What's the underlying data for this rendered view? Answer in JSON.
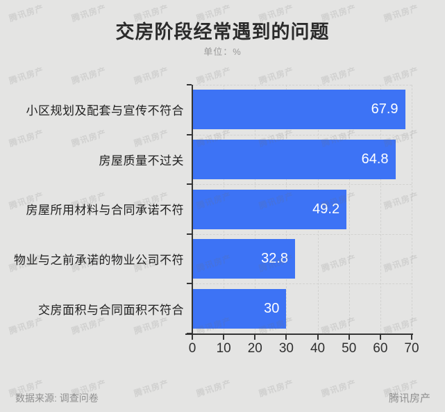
{
  "title": "交房阶段经常遇到的问题",
  "subtitle": "单位：%",
  "watermark_text": "腾讯房产",
  "footer": {
    "source": "数据来源: 调查问卷",
    "brand": "腾讯房产"
  },
  "colors": {
    "background": "#e4e4e3",
    "bar": "#3d73f5",
    "axis": "#343434",
    "grid": "#d2d2d0",
    "title": "#2b2b2b",
    "subtitle": "#9a9a9a",
    "category_label": "#1f1f1f",
    "value_label": "#ffffff",
    "footer_text": "#8f8f8f"
  },
  "chart_data": {
    "type": "bar",
    "orientation": "horizontal",
    "title": "交房阶段经常遇到的问题",
    "unit": "%",
    "categories": [
      "小区规划及配套与宣传不符合",
      "房屋质量不过关",
      "房屋所用材料与合同承诺不符",
      "物业与之前承诺的物业公司不符",
      "交房面积与合同面积不符合"
    ],
    "values": [
      67.9,
      64.8,
      49.2,
      32.8,
      30
    ],
    "value_labels": [
      "67.9",
      "64.8",
      "49.2",
      "32.8",
      "30"
    ],
    "xlabel": "",
    "ylabel": "",
    "xlim": [
      0,
      70
    ],
    "xticks": [
      0,
      10,
      20,
      30,
      40,
      50,
      60,
      70
    ],
    "grid": "dashed-vertical-and-horizontal",
    "legend": "none"
  }
}
